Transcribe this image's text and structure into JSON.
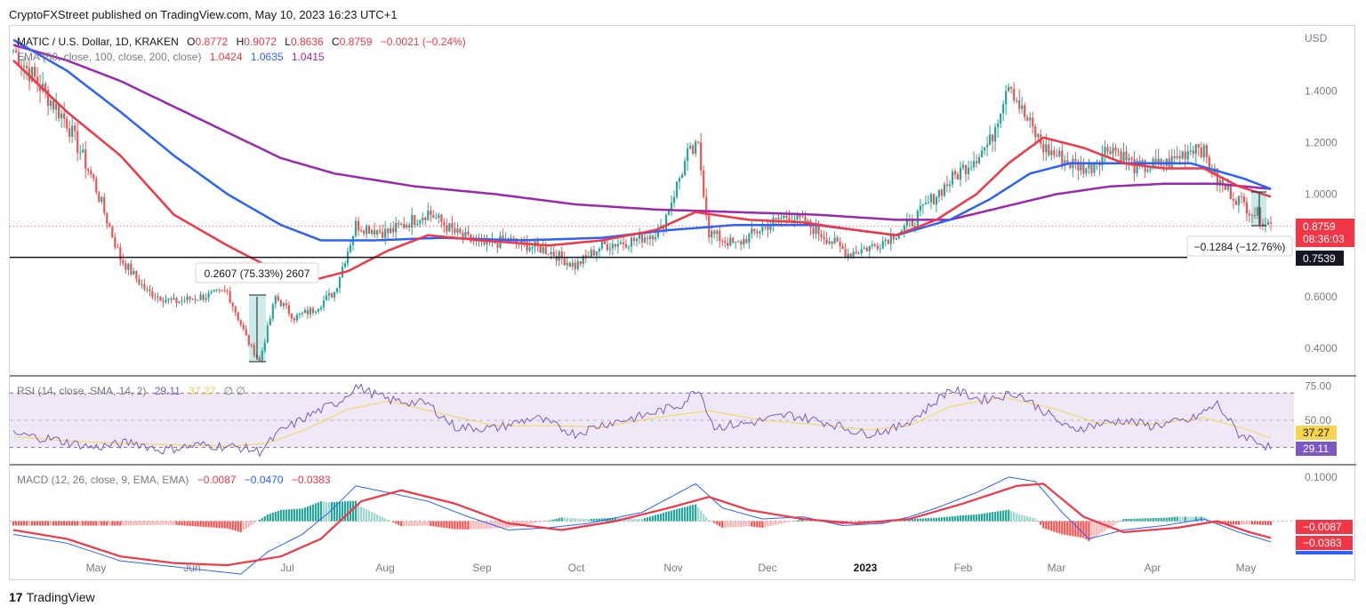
{
  "header": {
    "published": "CryptoFXStreet published on TradingView.com, May 10, 2023 16:23 UTC+1"
  },
  "footer": {
    "logo_text": "TradingView"
  },
  "price_pane": {
    "symbol": "MATIC / U.S. Dollar, 1D, KRAKEN",
    "o_label": "O",
    "o_value": "0.8772",
    "h_label": "H",
    "h_value": "0.9072",
    "l_label": "L",
    "l_value": "0.8636",
    "c_label": "C",
    "c_value": "0.8759",
    "change": "−0.0021 (−0.24%)",
    "ema_label": "EMA (50, close, 100, close, 200, close)",
    "ema50": "1.0424",
    "ema100": "1.0635",
    "ema200": "1.0415",
    "currency": "USD",
    "last_price": "0.8759",
    "countdown": "08:36:03",
    "support_level": "0.7539",
    "measure_up": "0.2607 (75.33%) 2607",
    "measure_down": "−0.1284 (−12.76%)",
    "colors": {
      "up": "#26a69a",
      "down": "#ef5350",
      "ema50": "#f23645",
      "ema100": "#2962ff",
      "ema200": "#9c27b0"
    }
  },
  "rsi_pane": {
    "label": "RSI (14, close, SMA, 14, 2)",
    "rsi_value": "29.11",
    "sma_value": "37.27",
    "extra": "∅ ∅",
    "colors": {
      "rsi": "#7e57c2",
      "sma": "#f7d44a",
      "band": "#ede7f6"
    }
  },
  "macd_pane": {
    "label": "MACD (12, 26, close, 9, EMA, EMA)",
    "hist_value": "−0.0087",
    "macd_value": "−0.0470",
    "signal_value": "−0.0383",
    "colors": {
      "macd": "#2962ff",
      "signal": "#f23645",
      "hist_up": "#26a69a",
      "hist_down": "#ef5350"
    }
  },
  "chart_data": {
    "type": "candlestick",
    "x_labels": [
      "May",
      "Jun",
      "Jul",
      "Aug",
      "Sep",
      "Oct",
      "Nov",
      "Dec",
      "2023",
      "Feb",
      "Mar",
      "Apr",
      "May"
    ],
    "price_axis": {
      "ticks": [
        "1.4000",
        "1.2000",
        "1.0000",
        "0.6000",
        "0.4000"
      ],
      "ylim": [
        0.3,
        1.62
      ]
    },
    "rsi_axis": {
      "ticks": [
        "75.00",
        "50.00"
      ],
      "ylim": [
        20,
        80
      ],
      "bands": [
        30,
        70
      ]
    },
    "macd_axis": {
      "ticks": [
        "0.1000"
      ],
      "ylim": [
        -0.13,
        0.12
      ]
    },
    "price_anchors": [
      [
        0,
        1.56
      ],
      [
        10,
        1.42
      ],
      [
        20,
        1.28
      ],
      [
        30,
        1.05
      ],
      [
        40,
        0.75
      ],
      [
        50,
        0.62
      ],
      [
        60,
        0.58
      ],
      [
        70,
        0.6
      ],
      [
        80,
        0.62
      ],
      [
        88,
        0.42
      ],
      [
        92,
        0.35
      ],
      [
        98,
        0.6
      ],
      [
        105,
        0.52
      ],
      [
        112,
        0.55
      ],
      [
        120,
        0.62
      ],
      [
        128,
        0.88
      ],
      [
        140,
        0.85
      ],
      [
        155,
        0.93
      ],
      [
        165,
        0.85
      ],
      [
        175,
        0.8
      ],
      [
        185,
        0.82
      ],
      [
        200,
        0.78
      ],
      [
        210,
        0.72
      ],
      [
        220,
        0.8
      ],
      [
        232,
        0.82
      ],
      [
        242,
        0.86
      ],
      [
        252,
        1.15
      ],
      [
        256,
        1.18
      ],
      [
        260,
        0.85
      ],
      [
        270,
        0.8
      ],
      [
        280,
        0.87
      ],
      [
        290,
        0.92
      ],
      [
        300,
        0.86
      ],
      [
        312,
        0.77
      ],
      [
        322,
        0.8
      ],
      [
        335,
        0.88
      ],
      [
        345,
        1.0
      ],
      [
        355,
        1.1
      ],
      [
        365,
        1.2
      ],
      [
        372,
        1.45
      ],
      [
        377,
        1.32
      ],
      [
        385,
        1.18
      ],
      [
        395,
        1.12
      ],
      [
        402,
        1.1
      ],
      [
        410,
        1.19
      ],
      [
        420,
        1.1
      ],
      [
        432,
        1.12
      ],
      [
        443,
        1.2
      ],
      [
        450,
        1.05
      ],
      [
        460,
        0.96
      ],
      [
        470,
        0.88
      ]
    ],
    "ema50_anchors": [
      [
        0,
        1.52
      ],
      [
        20,
        1.32
      ],
      [
        40,
        1.15
      ],
      [
        60,
        0.92
      ],
      [
        80,
        0.8
      ],
      [
        95,
        0.72
      ],
      [
        110,
        0.66
      ],
      [
        125,
        0.7
      ],
      [
        140,
        0.78
      ],
      [
        155,
        0.84
      ],
      [
        175,
        0.82
      ],
      [
        200,
        0.8
      ],
      [
        220,
        0.82
      ],
      [
        240,
        0.86
      ],
      [
        255,
        0.93
      ],
      [
        275,
        0.9
      ],
      [
        295,
        0.89
      ],
      [
        315,
        0.86
      ],
      [
        330,
        0.84
      ],
      [
        345,
        0.9
      ],
      [
        360,
        1.0
      ],
      [
        372,
        1.12
      ],
      [
        385,
        1.22
      ],
      [
        400,
        1.18
      ],
      [
        415,
        1.12
      ],
      [
        430,
        1.1
      ],
      [
        445,
        1.1
      ],
      [
        458,
        1.03
      ],
      [
        470,
        0.99
      ]
    ],
    "ema100_anchors": [
      [
        0,
        1.6
      ],
      [
        20,
        1.48
      ],
      [
        40,
        1.32
      ],
      [
        60,
        1.15
      ],
      [
        80,
        1.0
      ],
      [
        100,
        0.88
      ],
      [
        115,
        0.82
      ],
      [
        135,
        0.82
      ],
      [
        160,
        0.83
      ],
      [
        190,
        0.82
      ],
      [
        220,
        0.83
      ],
      [
        245,
        0.86
      ],
      [
        270,
        0.88
      ],
      [
        300,
        0.88
      ],
      [
        330,
        0.84
      ],
      [
        350,
        0.9
      ],
      [
        365,
        0.98
      ],
      [
        380,
        1.08
      ],
      [
        395,
        1.12
      ],
      [
        415,
        1.12
      ],
      [
        440,
        1.12
      ],
      [
        460,
        1.06
      ],
      [
        470,
        1.02
      ]
    ],
    "ema200_anchors": [
      [
        0,
        1.58
      ],
      [
        20,
        1.52
      ],
      [
        40,
        1.44
      ],
      [
        60,
        1.34
      ],
      [
        80,
        1.24
      ],
      [
        100,
        1.14
      ],
      [
        120,
        1.08
      ],
      [
        150,
        1.03
      ],
      [
        180,
        1.0
      ],
      [
        210,
        0.96
      ],
      [
        240,
        0.94
      ],
      [
        270,
        0.93
      ],
      [
        300,
        0.92
      ],
      [
        330,
        0.9
      ],
      [
        350,
        0.9
      ],
      [
        370,
        0.95
      ],
      [
        390,
        1.0
      ],
      [
        410,
        1.03
      ],
      [
        430,
        1.04
      ],
      [
        450,
        1.04
      ],
      [
        470,
        1.02
      ]
    ],
    "rsi_anchors": [
      [
        0,
        40
      ],
      [
        15,
        36
      ],
      [
        30,
        30
      ],
      [
        45,
        34
      ],
      [
        55,
        28
      ],
      [
        70,
        32
      ],
      [
        85,
        30
      ],
      [
        92,
        27
      ],
      [
        100,
        42
      ],
      [
        112,
        55
      ],
      [
        122,
        64
      ],
      [
        128,
        75
      ],
      [
        140,
        65
      ],
      [
        155,
        62
      ],
      [
        165,
        45
      ],
      [
        180,
        44
      ],
      [
        195,
        52
      ],
      [
        210,
        40
      ],
      [
        220,
        47
      ],
      [
        235,
        53
      ],
      [
        250,
        62
      ],
      [
        256,
        74
      ],
      [
        262,
        45
      ],
      [
        275,
        48
      ],
      [
        290,
        54
      ],
      [
        305,
        48
      ],
      [
        318,
        40
      ],
      [
        330,
        44
      ],
      [
        340,
        56
      ],
      [
        350,
        73
      ],
      [
        362,
        65
      ],
      [
        375,
        70
      ],
      [
        385,
        57
      ],
      [
        395,
        43
      ],
      [
        405,
        47
      ],
      [
        415,
        50
      ],
      [
        425,
        46
      ],
      [
        440,
        50
      ],
      [
        450,
        62
      ],
      [
        458,
        40
      ],
      [
        465,
        35
      ],
      [
        470,
        29
      ]
    ],
    "rsi_sma_anchors": [
      [
        0,
        38
      ],
      [
        20,
        35
      ],
      [
        40,
        33
      ],
      [
        60,
        32
      ],
      [
        80,
        31
      ],
      [
        95,
        33
      ],
      [
        110,
        44
      ],
      [
        125,
        58
      ],
      [
        140,
        64
      ],
      [
        160,
        55
      ],
      [
        180,
        46
      ],
      [
        200,
        46
      ],
      [
        220,
        45
      ],
      [
        240,
        52
      ],
      [
        260,
        57
      ],
      [
        280,
        50
      ],
      [
        300,
        47
      ],
      [
        320,
        43
      ],
      [
        335,
        46
      ],
      [
        350,
        60
      ],
      [
        370,
        67
      ],
      [
        390,
        58
      ],
      [
        405,
        48
      ],
      [
        425,
        47
      ],
      [
        445,
        52
      ],
      [
        460,
        44
      ],
      [
        470,
        37
      ]
    ],
    "macd_anchors": [
      [
        0,
        -0.03
      ],
      [
        20,
        -0.05
      ],
      [
        40,
        -0.09
      ],
      [
        55,
        -0.1
      ],
      [
        70,
        -0.11
      ],
      [
        85,
        -0.12
      ],
      [
        95,
        -0.07
      ],
      [
        108,
        -0.03
      ],
      [
        118,
        0.02
      ],
      [
        128,
        0.08
      ],
      [
        140,
        0.065
      ],
      [
        155,
        0.045
      ],
      [
        170,
        0.01
      ],
      [
        185,
        -0.02
      ],
      [
        200,
        -0.015
      ],
      [
        215,
        -0.005
      ],
      [
        235,
        0.02
      ],
      [
        255,
        0.085
      ],
      [
        265,
        0.03
      ],
      [
        280,
        0.005
      ],
      [
        295,
        0.01
      ],
      [
        310,
        -0.01
      ],
      [
        325,
        -0.005
      ],
      [
        335,
        0.01
      ],
      [
        345,
        0.03
      ],
      [
        360,
        0.065
      ],
      [
        372,
        0.1
      ],
      [
        382,
        0.09
      ],
      [
        392,
        0.02
      ],
      [
        402,
        -0.04
      ],
      [
        415,
        -0.02
      ],
      [
        430,
        -0.01
      ],
      [
        445,
        0.005
      ],
      [
        458,
        -0.025
      ],
      [
        470,
        -0.047
      ]
    ],
    "signal_anchors": [
      [
        0,
        -0.02
      ],
      [
        20,
        -0.04
      ],
      [
        40,
        -0.08
      ],
      [
        60,
        -0.095
      ],
      [
        80,
        -0.1
      ],
      [
        100,
        -0.08
      ],
      [
        115,
        -0.04
      ],
      [
        130,
        0.045
      ],
      [
        145,
        0.07
      ],
      [
        165,
        0.04
      ],
      [
        185,
        -0.005
      ],
      [
        205,
        -0.02
      ],
      [
        225,
        0.0
      ],
      [
        245,
        0.03
      ],
      [
        260,
        0.055
      ],
      [
        275,
        0.025
      ],
      [
        295,
        0.005
      ],
      [
        315,
        -0.005
      ],
      [
        335,
        0.005
      ],
      [
        355,
        0.04
      ],
      [
        375,
        0.08
      ],
      [
        385,
        0.085
      ],
      [
        400,
        0.01
      ],
      [
        415,
        -0.025
      ],
      [
        435,
        -0.015
      ],
      [
        450,
        0.0
      ],
      [
        462,
        -0.025
      ],
      [
        470,
        -0.038
      ]
    ],
    "support_price": 0.7539,
    "last_price_value": 0.8759
  }
}
